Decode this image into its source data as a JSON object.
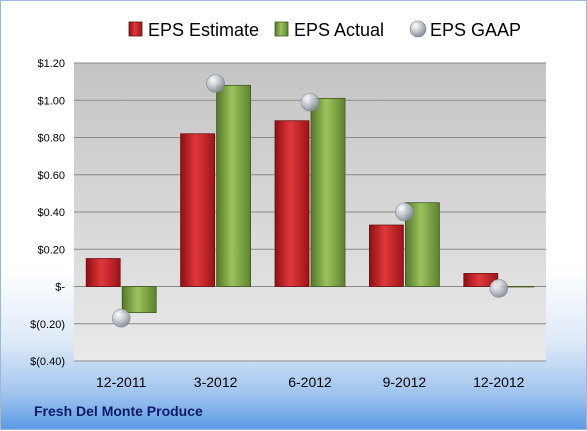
{
  "chart_data": {
    "type": "bar",
    "categories": [
      "12-2011",
      "3-2012",
      "6-2012",
      "9-2012",
      "12-2012"
    ],
    "series": [
      {
        "name": "EPS Estimate",
        "kind": "bar",
        "color": "#c0262b",
        "values": [
          0.15,
          0.82,
          0.89,
          0.33,
          0.07
        ]
      },
      {
        "name": "EPS Actual",
        "kind": "bar",
        "color": "#7da346",
        "values": [
          -0.14,
          1.08,
          1.01,
          0.45,
          0.0
        ]
      },
      {
        "name": "EPS GAAP",
        "kind": "marker",
        "color": "#a9b1ba",
        "values": [
          -0.17,
          1.09,
          0.99,
          0.4,
          -0.01
        ]
      }
    ],
    "ylim": [
      -0.4,
      1.2
    ],
    "yticks": [
      {
        "value": 1.2,
        "label": "$1.20"
      },
      {
        "value": 1.0,
        "label": "$1.00"
      },
      {
        "value": 0.8,
        "label": "$0.80"
      },
      {
        "value": 0.6,
        "label": "$0.60"
      },
      {
        "value": 0.4,
        "label": "$0.40"
      },
      {
        "value": 0.2,
        "label": "$0.20"
      },
      {
        "value": 0.0,
        "label": "$-"
      },
      {
        "value": -0.2,
        "label": "$(0.20)"
      },
      {
        "value": -0.4,
        "label": "$(0.40)"
      }
    ],
    "grid": true,
    "legend_position": "top"
  },
  "footer": {
    "company": "Fresh Del Monte Produce"
  }
}
